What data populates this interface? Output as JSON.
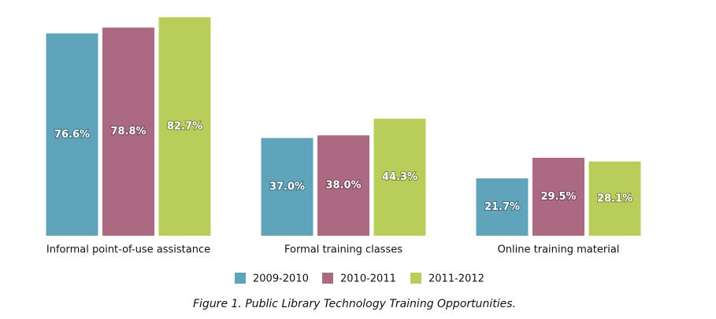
{
  "chart_data": {
    "type": "bar",
    "title": "Figure 1. Public Library Technology Training Opportunities.",
    "categories": [
      "Informal point-of-use assistance",
      "Formal training classes",
      "Online training material"
    ],
    "series": [
      {
        "name": "2009-2010",
        "color": "#60a4bc",
        "values": [
          76.6,
          37.0,
          21.7
        ],
        "value_labels": [
          "76.6%",
          "37.0%",
          "21.7%"
        ]
      },
      {
        "name": "2010-2011",
        "color": "#ac6982",
        "values": [
          78.8,
          38.0,
          29.5
        ],
        "value_labels": [
          "78.8%",
          "38.0%",
          "29.5%"
        ]
      },
      {
        "name": "2011-2012",
        "color": "#b9cd5b",
        "values": [
          82.7,
          44.3,
          28.1
        ],
        "value_labels": [
          "82.7%",
          "44.3%",
          "28.1%"
        ]
      }
    ]
  }
}
